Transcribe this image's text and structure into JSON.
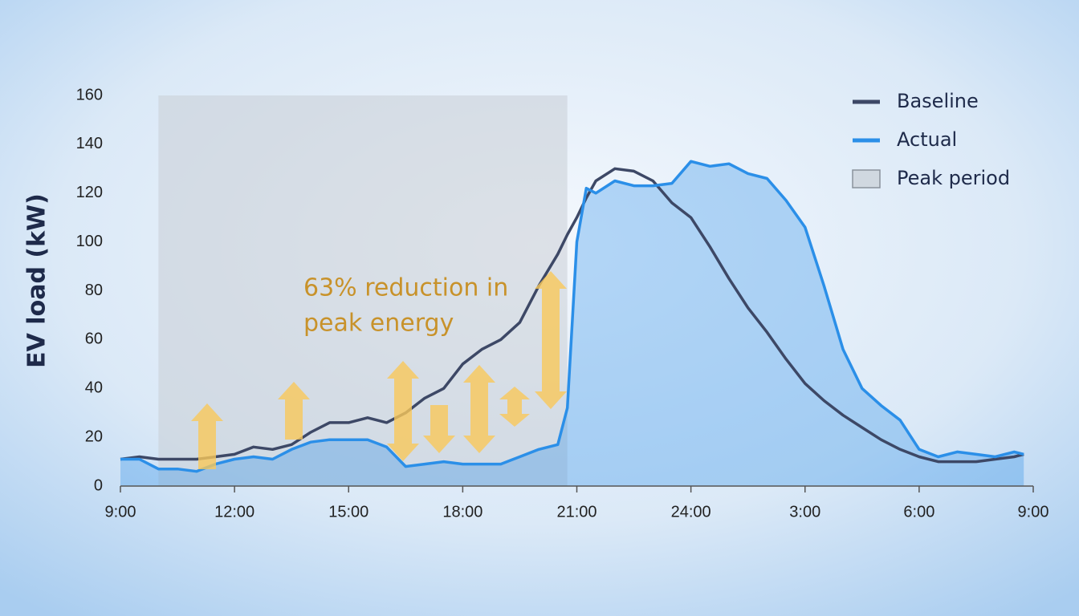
{
  "chart_data": {
    "type": "line",
    "ylabel": "EV load (kW)",
    "x": [
      9,
      9.5,
      10,
      10.5,
      11,
      11.5,
      12,
      12.5,
      13,
      13.5,
      14,
      14.5,
      15,
      15.5,
      16,
      16.5,
      17,
      17.5,
      18,
      18.5,
      19,
      19.5,
      20,
      20.5,
      20.75,
      21,
      21.25,
      21.5,
      22,
      22.5,
      23,
      23.5,
      24,
      24.5,
      25,
      25.5,
      26,
      26.5,
      27,
      27.5,
      28,
      28.5,
      29,
      29.5,
      30,
      30.5,
      31,
      31.5,
      32,
      32.5,
      32.75
    ],
    "series": [
      {
        "name": "Baseline",
        "color": "#3d4866",
        "values": [
          11,
          12,
          11,
          11,
          11,
          12,
          13,
          16,
          15,
          17,
          22,
          26,
          26,
          28,
          26,
          30,
          36,
          40,
          50,
          56,
          60,
          67,
          82,
          95,
          103,
          110,
          118,
          125,
          130,
          129,
          125,
          116,
          110,
          98,
          85,
          73,
          63,
          52,
          42,
          35,
          29,
          24,
          19,
          15,
          12,
          10,
          10,
          10,
          11,
          12,
          13
        ]
      },
      {
        "name": "Actual",
        "color": "#2b8fe8",
        "fill": true,
        "values": [
          11,
          11,
          7,
          7,
          6,
          9,
          11,
          12,
          11,
          15,
          18,
          19,
          19,
          19,
          16,
          8,
          9,
          10,
          9,
          9,
          9,
          12,
          15,
          17,
          32,
          100,
          122,
          120,
          125,
          123,
          123,
          124,
          133,
          131,
          132,
          128,
          126,
          117,
          106,
          82,
          56,
          40,
          33,
          27,
          15,
          12,
          14,
          13,
          12,
          14,
          13
        ]
      }
    ],
    "peak_period": {
      "label": "Peak period",
      "start": 10,
      "end": 20.75,
      "color": "#c9ced6"
    },
    "annotation": [
      "63% reduction in",
      "peak energy"
    ],
    "xlim": [
      9,
      33
    ],
    "xticks": [
      {
        "value": 9,
        "label": "9:00"
      },
      {
        "value": 12,
        "label": "12:00"
      },
      {
        "value": 15,
        "label": "15:00"
      },
      {
        "value": 18,
        "label": "18:00"
      },
      {
        "value": 21,
        "label": "21:00"
      },
      {
        "value": 24,
        "label": "24:00"
      },
      {
        "value": 27,
        "label": "3:00"
      },
      {
        "value": 30,
        "label": "6:00"
      },
      {
        "value": 33,
        "label": "9:00"
      }
    ],
    "ylim": [
      0,
      160
    ],
    "yticks": [
      0,
      20,
      40,
      60,
      80,
      100,
      120,
      140,
      160
    ],
    "legend": "upper right"
  }
}
